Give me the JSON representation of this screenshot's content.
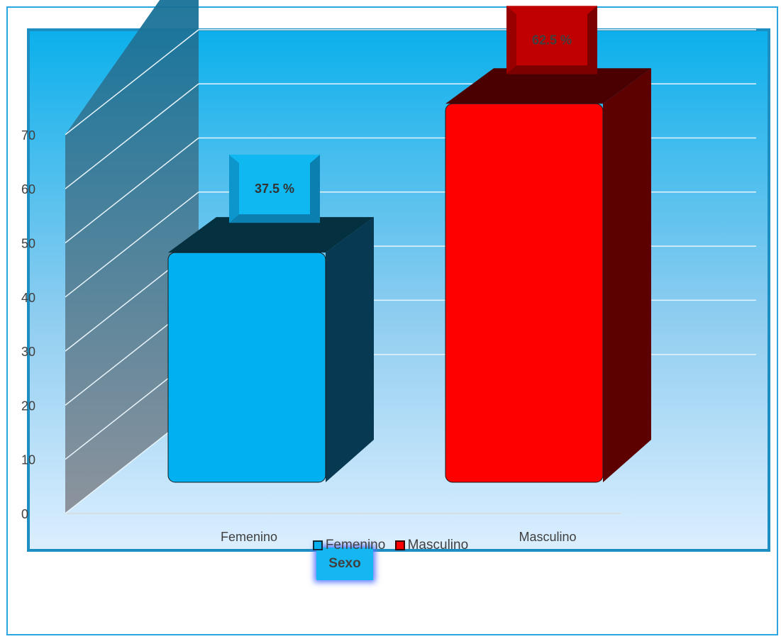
{
  "chart_data": {
    "type": "bar",
    "categories": [
      "Femenino",
      "Masculino"
    ],
    "values": [
      37.5,
      62.5
    ],
    "data_labels": [
      "37.5 %",
      "62.5 %"
    ],
    "xlabel": "Sexo",
    "ylabel": "",
    "ylim": [
      0,
      70
    ],
    "yticks": [
      0,
      10,
      20,
      30,
      40,
      50,
      60,
      70
    ],
    "y_tick_labels": [
      "0",
      "10",
      "20",
      "30",
      "40",
      "50",
      "60",
      "70"
    ],
    "grid": true,
    "legend": [
      "Femenino",
      "Masculino"
    ],
    "legend_position": "bottom",
    "colors": [
      "#00b0f0",
      "#ff0000"
    ],
    "style": "3d"
  }
}
